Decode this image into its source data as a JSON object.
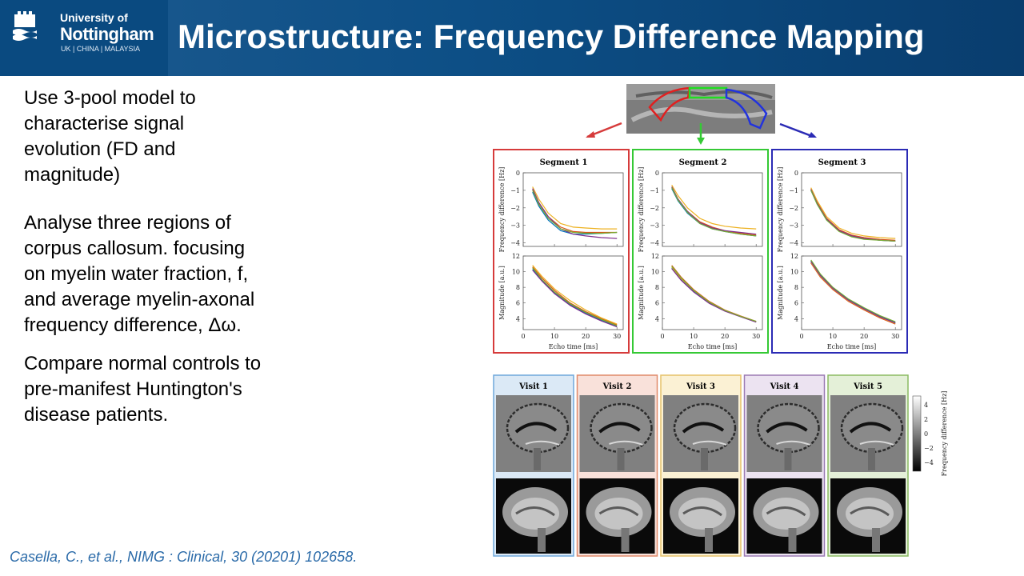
{
  "header": {
    "logo": {
      "line1": "University of",
      "line2": "Nottingham",
      "line3": "UK | CHINA | MALAYSIA"
    },
    "title": "Microstructure: Frequency Difference Mapping"
  },
  "bullets": [
    "Use 3-pool model to characterise signal evolution (FD and magnitude)",
    "Analyse three regions of corpus callosum. focusing on myelin water fraction, f, and average myelin-axonal frequency difference, Δω.",
    "Compare normal controls to pre-manifest Huntington's disease patients."
  ],
  "citation": "Casella, C., et al., NIMG : Clinical, 30 (20201) 102658.",
  "figure": {
    "segments": [
      {
        "title": "Segment 1",
        "color": "#d63b3b"
      },
      {
        "title": "Segment 2",
        "color": "#35c935"
      },
      {
        "title": "Segment 3",
        "color": "#2b2bb5"
      }
    ],
    "fd_ylabel": "Frequency difference [Hz]",
    "mag_ylabel": "Magnitude [a.u.]",
    "xlabel": "Echo time [ms]",
    "fd_yticks": [
      "0",
      "−1",
      "−2",
      "−3",
      "−4"
    ],
    "mag_yticks": [
      "12",
      "10",
      "8",
      "6",
      "4"
    ],
    "xticks": [
      "0",
      "10",
      "20",
      "30"
    ],
    "visits": [
      {
        "title": "Visit 1",
        "bg": "#dbe9f6",
        "border": "#6fa8dc"
      },
      {
        "title": "Visit 2",
        "bg": "#f9e1da",
        "border": "#e08a6a"
      },
      {
        "title": "Visit 3",
        "bg": "#fbf1d4",
        "border": "#e6c26a"
      },
      {
        "title": "Visit 4",
        "bg": "#ece3f1",
        "border": "#9b7bb4"
      },
      {
        "title": "Visit 5",
        "bg": "#e4f0d8",
        "border": "#8bbb62"
      }
    ],
    "colorbar": {
      "label": "Frequency difference [Hz]",
      "ticks": [
        "4",
        "2",
        "0",
        "−2",
        "−4"
      ]
    }
  },
  "chart_data": [
    {
      "type": "line",
      "title": "Segment 1",
      "xlabel": "",
      "ylabel": "Frequency difference [Hz]",
      "xlim": [
        0,
        32
      ],
      "ylim": [
        -4.2,
        0
      ],
      "series": [
        {
          "color": "#0072bd",
          "x": [
            3,
            5,
            8,
            12,
            16,
            20,
            25,
            30
          ],
          "y": [
            -1.1,
            -1.9,
            -2.7,
            -3.3,
            -3.5,
            -3.5,
            -3.45,
            -3.4
          ]
        },
        {
          "color": "#d95319",
          "x": [
            3,
            5,
            8,
            12,
            16,
            20,
            25,
            30
          ],
          "y": [
            -0.9,
            -1.7,
            -2.5,
            -3.1,
            -3.35,
            -3.4,
            -3.4,
            -3.4
          ]
        },
        {
          "color": "#edb120",
          "x": [
            3,
            5,
            8,
            12,
            16,
            20,
            25,
            30
          ],
          "y": [
            -0.8,
            -1.5,
            -2.3,
            -2.9,
            -3.1,
            -3.15,
            -3.2,
            -3.2
          ]
        },
        {
          "color": "#7e2f8e",
          "x": [
            3,
            5,
            8,
            12,
            16,
            20,
            25,
            30
          ],
          "y": [
            -0.9,
            -1.7,
            -2.5,
            -3.2,
            -3.5,
            -3.6,
            -3.7,
            -3.75
          ]
        },
        {
          "color": "#77ac30",
          "x": [
            3,
            5,
            8,
            12,
            16,
            20,
            25,
            30
          ],
          "y": [
            -1.0,
            -1.8,
            -2.6,
            -3.2,
            -3.4,
            -3.45,
            -3.45,
            -3.4
          ]
        }
      ]
    },
    {
      "type": "line",
      "title": "Segment 2",
      "xlabel": "",
      "ylabel": "Frequency difference [Hz]",
      "xlim": [
        0,
        32
      ],
      "ylim": [
        -4.2,
        0
      ],
      "series": [
        {
          "color": "#0072bd",
          "x": [
            3,
            5,
            8,
            12,
            16,
            20,
            25,
            30
          ],
          "y": [
            -0.9,
            -1.6,
            -2.3,
            -2.9,
            -3.2,
            -3.35,
            -3.5,
            -3.6
          ]
        },
        {
          "color": "#d95319",
          "x": [
            3,
            5,
            8,
            12,
            16,
            20,
            25,
            30
          ],
          "y": [
            -0.8,
            -1.5,
            -2.2,
            -2.8,
            -3.1,
            -3.3,
            -3.45,
            -3.55
          ]
        },
        {
          "color": "#edb120",
          "x": [
            3,
            5,
            8,
            12,
            16,
            20,
            25,
            30
          ],
          "y": [
            -0.7,
            -1.3,
            -2.0,
            -2.6,
            -2.9,
            -3.05,
            -3.15,
            -3.2
          ]
        },
        {
          "color": "#7e2f8e",
          "x": [
            3,
            5,
            8,
            12,
            16,
            20,
            25,
            30
          ],
          "y": [
            -0.8,
            -1.5,
            -2.2,
            -2.85,
            -3.15,
            -3.3,
            -3.4,
            -3.5
          ]
        },
        {
          "color": "#77ac30",
          "x": [
            3,
            5,
            8,
            12,
            16,
            20,
            25,
            30
          ],
          "y": [
            -0.85,
            -1.55,
            -2.25,
            -2.9,
            -3.2,
            -3.35,
            -3.5,
            -3.6
          ]
        }
      ]
    },
    {
      "type": "line",
      "title": "Segment 3",
      "xlabel": "",
      "ylabel": "Frequency difference [Hz]",
      "xlim": [
        0,
        32
      ],
      "ylim": [
        -4.2,
        0
      ],
      "series": [
        {
          "color": "#0072bd",
          "x": [
            3,
            5,
            8,
            12,
            16,
            20,
            25,
            30
          ],
          "y": [
            -1.0,
            -1.8,
            -2.7,
            -3.3,
            -3.6,
            -3.75,
            -3.85,
            -3.9
          ]
        },
        {
          "color": "#d95319",
          "x": [
            3,
            5,
            8,
            12,
            16,
            20,
            25,
            30
          ],
          "y": [
            -0.9,
            -1.7,
            -2.6,
            -3.25,
            -3.55,
            -3.7,
            -3.8,
            -3.85
          ]
        },
        {
          "color": "#edb120",
          "x": [
            3,
            5,
            8,
            12,
            16,
            20,
            25,
            30
          ],
          "y": [
            -0.85,
            -1.6,
            -2.5,
            -3.15,
            -3.45,
            -3.6,
            -3.7,
            -3.75
          ]
        },
        {
          "color": "#7e2f8e",
          "x": [
            3,
            5,
            8,
            12,
            16,
            20,
            25,
            30
          ],
          "y": [
            -0.95,
            -1.75,
            -2.65,
            -3.3,
            -3.6,
            -3.75,
            -3.85,
            -3.9
          ]
        },
        {
          "color": "#77ac30",
          "x": [
            3,
            5,
            8,
            12,
            16,
            20,
            25,
            30
          ],
          "y": [
            -1.0,
            -1.8,
            -2.7,
            -3.35,
            -3.65,
            -3.8,
            -3.85,
            -3.9
          ]
        }
      ]
    },
    {
      "type": "line",
      "title": "",
      "xlabel": "Echo time [ms]",
      "ylabel": "Magnitude [a.u.]",
      "xlim": [
        0,
        32
      ],
      "ylim": [
        2.6,
        12
      ],
      "series": [
        {
          "color": "#0072bd",
          "x": [
            3,
            6,
            10,
            15,
            20,
            25,
            30
          ],
          "y": [
            10.3,
            8.9,
            7.3,
            5.8,
            4.7,
            3.8,
            3.0
          ]
        },
        {
          "color": "#d95319",
          "x": [
            3,
            6,
            10,
            15,
            20,
            25,
            30
          ],
          "y": [
            10.6,
            9.2,
            7.6,
            6.0,
            4.9,
            4.0,
            3.2
          ]
        },
        {
          "color": "#edb120",
          "x": [
            3,
            6,
            10,
            15,
            20,
            25,
            30
          ],
          "y": [
            10.8,
            9.4,
            7.8,
            6.3,
            5.1,
            4.1,
            3.3
          ]
        },
        {
          "color": "#7e2f8e",
          "x": [
            3,
            6,
            10,
            15,
            20,
            25,
            30
          ],
          "y": [
            10.2,
            8.8,
            7.2,
            5.7,
            4.6,
            3.7,
            2.95
          ]
        },
        {
          "color": "#77ac30",
          "x": [
            3,
            6,
            10,
            15,
            20,
            25,
            30
          ],
          "y": [
            10.5,
            9.0,
            7.4,
            5.9,
            4.8,
            3.9,
            3.1
          ]
        }
      ]
    },
    {
      "type": "line",
      "title": "",
      "xlabel": "Echo time [ms]",
      "ylabel": "Magnitude [a.u.]",
      "xlim": [
        0,
        32
      ],
      "ylim": [
        2.6,
        12
      ],
      "series": [
        {
          "color": "#0072bd",
          "x": [
            3,
            6,
            10,
            15,
            20,
            25,
            30
          ],
          "y": [
            10.5,
            9.0,
            7.5,
            6.0,
            5.0,
            4.3,
            3.6
          ]
        },
        {
          "color": "#d95319",
          "x": [
            3,
            6,
            10,
            15,
            20,
            25,
            30
          ],
          "y": [
            10.8,
            9.3,
            7.7,
            6.2,
            5.1,
            4.35,
            3.65
          ]
        },
        {
          "color": "#edb120",
          "x": [
            3,
            6,
            10,
            15,
            20,
            25,
            30
          ],
          "y": [
            10.6,
            9.1,
            7.6,
            6.1,
            5.05,
            4.3,
            3.6
          ]
        },
        {
          "color": "#7e2f8e",
          "x": [
            3,
            6,
            10,
            15,
            20,
            25,
            30
          ],
          "y": [
            10.4,
            8.9,
            7.4,
            5.95,
            4.95,
            4.25,
            3.55
          ]
        },
        {
          "color": "#77ac30",
          "x": [
            3,
            6,
            10,
            15,
            20,
            25,
            30
          ],
          "y": [
            10.7,
            9.2,
            7.6,
            6.1,
            5.05,
            4.3,
            3.65
          ]
        }
      ]
    },
    {
      "type": "line",
      "title": "",
      "xlabel": "Echo time [ms]",
      "ylabel": "Magnitude [a.u.]",
      "xlim": [
        0,
        32
      ],
      "ylim": [
        2.6,
        12
      ],
      "series": [
        {
          "color": "#0072bd",
          "x": [
            3,
            6,
            10,
            15,
            20,
            25,
            30
          ],
          "y": [
            11.4,
            9.6,
            7.9,
            6.4,
            5.3,
            4.3,
            3.5
          ]
        },
        {
          "color": "#d95319",
          "x": [
            3,
            6,
            10,
            15,
            20,
            25,
            30
          ],
          "y": [
            11.1,
            9.3,
            7.7,
            6.2,
            5.1,
            4.1,
            3.3
          ]
        },
        {
          "color": "#edb120",
          "x": [
            3,
            6,
            10,
            15,
            20,
            25,
            30
          ],
          "y": [
            11.2,
            9.4,
            7.8,
            6.3,
            5.2,
            4.2,
            3.4
          ]
        },
        {
          "color": "#7e2f8e",
          "x": [
            3,
            6,
            10,
            15,
            20,
            25,
            30
          ],
          "y": [
            11.3,
            9.5,
            7.85,
            6.35,
            5.25,
            4.25,
            3.45
          ]
        },
        {
          "color": "#77ac30",
          "x": [
            3,
            6,
            10,
            15,
            20,
            25,
            30
          ],
          "y": [
            11.5,
            9.7,
            8.0,
            6.5,
            5.4,
            4.4,
            3.6
          ]
        }
      ]
    }
  ]
}
